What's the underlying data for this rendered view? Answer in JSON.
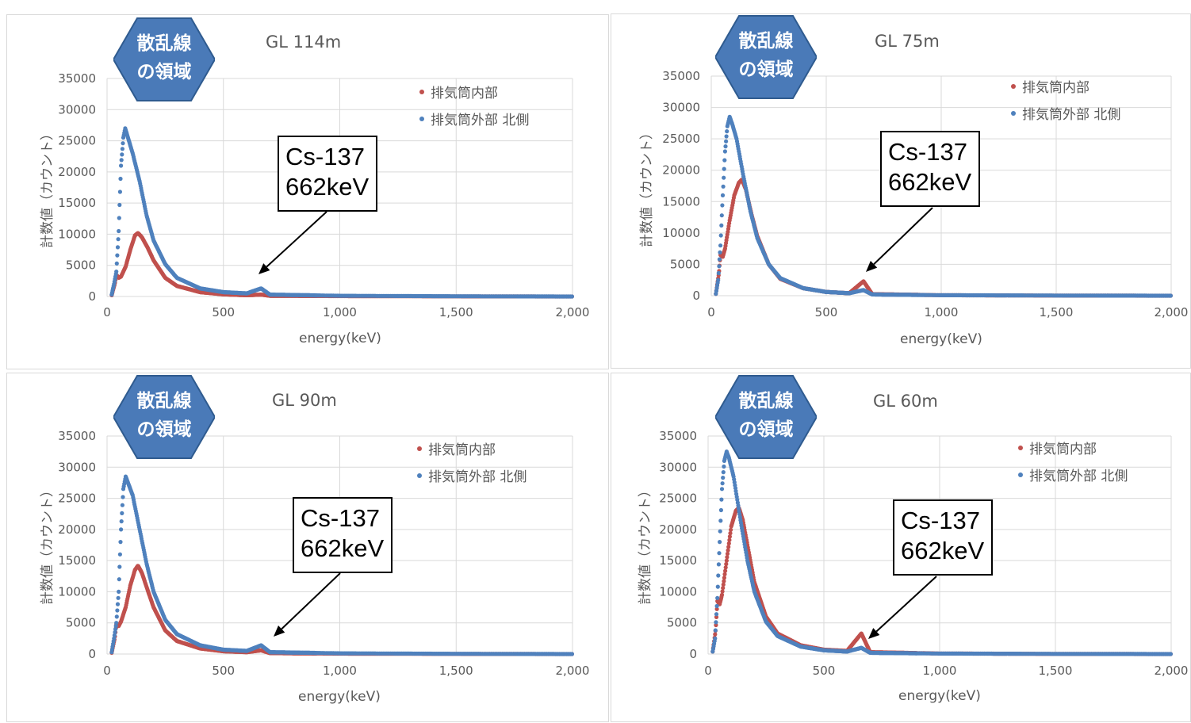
{
  "chart_data": [
    {
      "type": "scatter",
      "title": "GL 114m",
      "xlabel": "energy(keV)",
      "ylabel": "計数値（カウント）",
      "xlim": [
        0,
        2000
      ],
      "ylim": [
        0,
        35000
      ],
      "xticks": [
        "0",
        "500",
        "1,000",
        "1,500",
        "2,000"
      ],
      "yticks": [
        "0",
        "5000",
        "10000",
        "15000",
        "20000",
        "25000",
        "30000",
        "35000"
      ],
      "series": [
        {
          "name": "排気筒内部",
          "color": "#c0504d",
          "points": [
            [
              20,
              200
            ],
            [
              33,
              2000
            ],
            [
              40,
              3500
            ],
            [
              50,
              3000
            ],
            [
              60,
              3200
            ],
            [
              80,
              4800
            ],
            [
              100,
              7500
            ],
            [
              120,
              9800
            ],
            [
              133,
              10200
            ],
            [
              150,
              9500
            ],
            [
              175,
              7800
            ],
            [
              200,
              5800
            ],
            [
              250,
              3000
            ],
            [
              300,
              1700
            ],
            [
              400,
              700
            ],
            [
              500,
              350
            ],
            [
              600,
              200
            ],
            [
              662,
              300
            ],
            [
              700,
              120
            ],
            [
              1000,
              60
            ],
            [
              1500,
              20
            ],
            [
              2000,
              0
            ]
          ]
        },
        {
          "name": "排気筒外部 北側",
          "color": "#4f81bd",
          "points": [
            [
              20,
              300
            ],
            [
              30,
              2000
            ],
            [
              40,
              4000
            ],
            [
              50,
              10500
            ],
            [
              60,
              21000
            ],
            [
              70,
              25500
            ],
            [
              78,
              27000
            ],
            [
              90,
              25500
            ],
            [
              110,
              23000
            ],
            [
              140,
              18500
            ],
            [
              170,
              13000
            ],
            [
              200,
              9000
            ],
            [
              250,
              5200
            ],
            [
              300,
              3000
            ],
            [
              400,
              1300
            ],
            [
              500,
              700
            ],
            [
              600,
              500
            ],
            [
              662,
              1300
            ],
            [
              700,
              300
            ],
            [
              1000,
              120
            ],
            [
              1500,
              40
            ],
            [
              2000,
              0
            ]
          ]
        }
      ],
      "annotation": {
        "line1": "Cs-137",
        "line2": "662keV"
      },
      "badge": {
        "line1": "散乱線",
        "line2": "の領域"
      }
    },
    {
      "type": "scatter",
      "title": "GL 75m",
      "xlabel": "energy(keV)",
      "ylabel": "計数値（カウント）",
      "xlim": [
        0,
        2000
      ],
      "ylim": [
        0,
        35000
      ],
      "xticks": [
        "0",
        "500",
        "1,000",
        "1,500",
        "2,000"
      ],
      "yticks": [
        "0",
        "5000",
        "10000",
        "15000",
        "20000",
        "25000",
        "30000",
        "35000"
      ],
      "series": [
        {
          "name": "排気筒内部",
          "color": "#c0504d",
          "points": [
            [
              20,
              300
            ],
            [
              33,
              3500
            ],
            [
              40,
              6500
            ],
            [
              50,
              6200
            ],
            [
              60,
              7500
            ],
            [
              80,
              12000
            ],
            [
              100,
              16000
            ],
            [
              120,
              18000
            ],
            [
              133,
              18500
            ],
            [
              150,
              17000
            ],
            [
              175,
              13000
            ],
            [
              200,
              9500
            ],
            [
              250,
              5000
            ],
            [
              300,
              2700
            ],
            [
              400,
              1200
            ],
            [
              500,
              600
            ],
            [
              600,
              400
            ],
            [
              662,
              2300
            ],
            [
              700,
              250
            ],
            [
              1000,
              80
            ],
            [
              1500,
              20
            ],
            [
              2000,
              0
            ]
          ]
        },
        {
          "name": "排気筒外部 北側",
          "color": "#4f81bd",
          "points": [
            [
              20,
              300
            ],
            [
              30,
              2500
            ],
            [
              40,
              8000
            ],
            [
              50,
              16000
            ],
            [
              60,
              23000
            ],
            [
              70,
              27000
            ],
            [
              80,
              28500
            ],
            [
              90,
              27500
            ],
            [
              110,
              25000
            ],
            [
              140,
              19000
            ],
            [
              170,
              13500
            ],
            [
              200,
              9200
            ],
            [
              250,
              5000
            ],
            [
              300,
              2800
            ],
            [
              400,
              1200
            ],
            [
              500,
              600
            ],
            [
              600,
              400
            ],
            [
              662,
              900
            ],
            [
              700,
              200
            ],
            [
              1000,
              80
            ],
            [
              1500,
              30
            ],
            [
              2000,
              0
            ]
          ]
        }
      ],
      "annotation": {
        "line1": "Cs-137",
        "line2": "662keV"
      },
      "badge": {
        "line1": "散乱線",
        "line2": "の領域"
      }
    },
    {
      "type": "scatter",
      "title": "GL 90m",
      "xlabel": "energy(keV)",
      "ylabel": "計数値（カウント）",
      "xlim": [
        0,
        2000
      ],
      "ylim": [
        0,
        35000
      ],
      "xticks": [
        "0",
        "500",
        "1,000",
        "1,500",
        "2,000"
      ],
      "yticks": [
        "0",
        "5000",
        "10000",
        "15000",
        "20000",
        "25000",
        "30000",
        "35000"
      ],
      "series": [
        {
          "name": "排気筒内部",
          "color": "#c0504d",
          "points": [
            [
              20,
              200
            ],
            [
              33,
              2500
            ],
            [
              40,
              4800
            ],
            [
              50,
              4500
            ],
            [
              60,
              5200
            ],
            [
              80,
              7500
            ],
            [
              100,
              11000
            ],
            [
              120,
              13500
            ],
            [
              133,
              14200
            ],
            [
              150,
              13000
            ],
            [
              175,
              10200
            ],
            [
              200,
              7500
            ],
            [
              250,
              3800
            ],
            [
              300,
              2100
            ],
            [
              400,
              900
            ],
            [
              500,
              450
            ],
            [
              600,
              300
            ],
            [
              662,
              600
            ],
            [
              700,
              150
            ],
            [
              1000,
              60
            ],
            [
              1500,
              20
            ],
            [
              2000,
              0
            ]
          ]
        },
        {
          "name": "排気筒外部 北側",
          "color": "#4f81bd",
          "points": [
            [
              20,
              300
            ],
            [
              30,
              2500
            ],
            [
              40,
              5000
            ],
            [
              50,
              10000
            ],
            [
              60,
              20000
            ],
            [
              70,
              26500
            ],
            [
              80,
              28500
            ],
            [
              90,
              27500
            ],
            [
              110,
              25500
            ],
            [
              140,
              20000
            ],
            [
              170,
              14500
            ],
            [
              200,
              10000
            ],
            [
              250,
              5500
            ],
            [
              300,
              3200
            ],
            [
              400,
              1400
            ],
            [
              500,
              700
            ],
            [
              600,
              500
            ],
            [
              662,
              1400
            ],
            [
              700,
              300
            ],
            [
              1000,
              120
            ],
            [
              1500,
              40
            ],
            [
              2000,
              0
            ]
          ]
        }
      ],
      "annotation": {
        "line1": "Cs-137",
        "line2": "662keV"
      },
      "badge": {
        "line1": "散乱線",
        "line2": "の領域"
      }
    },
    {
      "type": "scatter",
      "title": "GL 60m",
      "xlabel": "energy(keV)",
      "ylabel": "計数値（カウント）",
      "xlim": [
        0,
        2000
      ],
      "ylim": [
        0,
        35000
      ],
      "xticks": [
        "0",
        "500",
        "1,000",
        "1,500",
        "2,000"
      ],
      "yticks": [
        "0",
        "5000",
        "10000",
        "15000",
        "20000",
        "25000",
        "30000",
        "35000"
      ],
      "series": [
        {
          "name": "排気筒内部",
          "color": "#c0504d",
          "points": [
            [
              20,
              400
            ],
            [
              33,
              4000
            ],
            [
              40,
              8500
            ],
            [
              50,
              8000
            ],
            [
              60,
              9500
            ],
            [
              80,
              15000
            ],
            [
              100,
              20500
            ],
            [
              120,
              23000
            ],
            [
              133,
              23500
            ],
            [
              150,
              21500
            ],
            [
              175,
              16500
            ],
            [
              200,
              11500
            ],
            [
              250,
              6000
            ],
            [
              300,
              3300
            ],
            [
              400,
              1400
            ],
            [
              500,
              700
            ],
            [
              600,
              500
            ],
            [
              662,
              3300
            ],
            [
              700,
              300
            ],
            [
              1000,
              90
            ],
            [
              1500,
              20
            ],
            [
              2000,
              0
            ]
          ]
        },
        {
          "name": "排気筒外部 北側",
          "color": "#4f81bd",
          "points": [
            [
              20,
              400
            ],
            [
              30,
              2500
            ],
            [
              40,
              9000
            ],
            [
              50,
              18000
            ],
            [
              60,
              26500
            ],
            [
              70,
              31000
            ],
            [
              80,
              32500
            ],
            [
              90,
              31500
            ],
            [
              110,
              28500
            ],
            [
              140,
              21500
            ],
            [
              170,
              15000
            ],
            [
              200,
              10000
            ],
            [
              250,
              5200
            ],
            [
              300,
              2900
            ],
            [
              400,
              1200
            ],
            [
              500,
              600
            ],
            [
              600,
              400
            ],
            [
              662,
              1000
            ],
            [
              700,
              200
            ],
            [
              1000,
              80
            ],
            [
              1500,
              30
            ],
            [
              2000,
              0
            ]
          ]
        }
      ],
      "annotation": {
        "line1": "Cs-137",
        "line2": "662keV"
      },
      "badge": {
        "line1": "散乱線",
        "line2": "の領域"
      }
    }
  ]
}
